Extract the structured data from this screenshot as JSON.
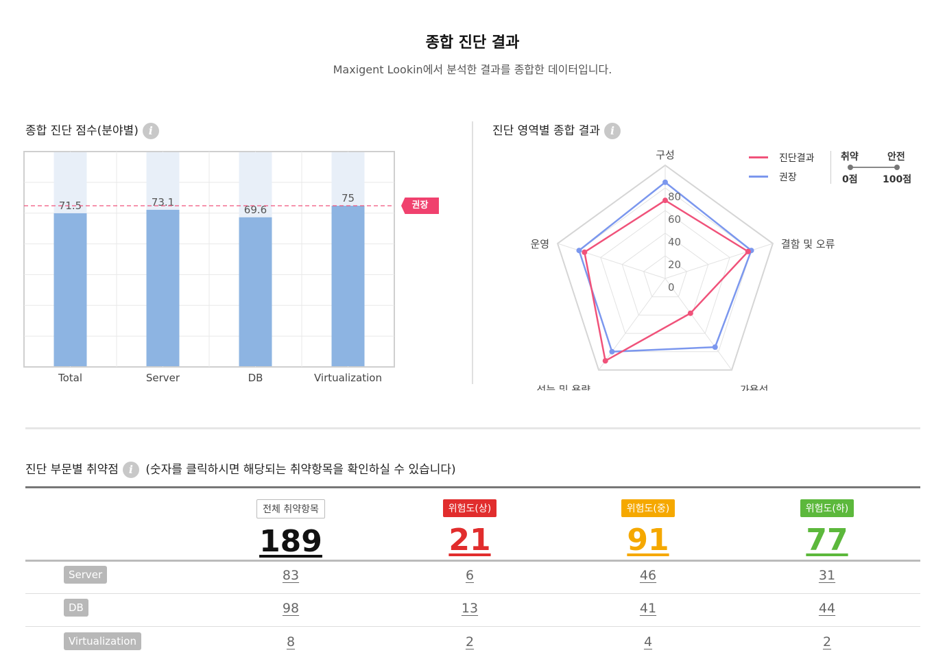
{
  "header": {
    "title": "종합 진단 결과",
    "subtitle": "Maxigent Lookin에서 분석한 결과를 종합한 데이터입니다."
  },
  "bar_section": {
    "title": "종합 진단 점수(분야별)",
    "info_icon": "info-icon",
    "recommend_badge": "권장"
  },
  "radar_section": {
    "title": "진단 영역별 종합 결과",
    "info_icon": "info-icon",
    "legend": {
      "result": "진단결과",
      "recommended": "권장"
    },
    "scale": {
      "weak": "취약",
      "safe": "안전",
      "min_label": "0점",
      "max_label": "100점"
    }
  },
  "vuln_section": {
    "title": "진단 부문별 취약점",
    "note": "(숫자를 클릭하시면 해당되는 취약항목을 확인하실 수 있습니다)",
    "summary": [
      {
        "label": "전체 취약항목",
        "value": "189",
        "color": "#111111"
      },
      {
        "label": "위험도(상)",
        "value": "21",
        "color": "#e12d2d"
      },
      {
        "label": "위험도(중)",
        "value": "91",
        "color": "#f5a800"
      },
      {
        "label": "위험도(하)",
        "value": "77",
        "color": "#5cb83c"
      }
    ],
    "rows": [
      {
        "name": "Server",
        "values": [
          "83",
          "6",
          "46",
          "31"
        ]
      },
      {
        "name": "DB",
        "values": [
          "98",
          "13",
          "41",
          "44"
        ]
      },
      {
        "name": "Virtualization",
        "values": [
          "8",
          "2",
          "4",
          "2"
        ]
      }
    ]
  },
  "chart_data": [
    {
      "type": "bar",
      "title": "종합 진단 점수(분야별)",
      "categories": [
        "Total",
        "Server",
        "DB",
        "Virtualization"
      ],
      "values": [
        71.5,
        73.1,
        69.6,
        75
      ],
      "ylim": [
        0,
        100
      ],
      "reference_line": {
        "label": "권장",
        "value": 75
      },
      "bar_color": "#8db4e2",
      "background_color": "#e8eff8"
    },
    {
      "type": "radar",
      "title": "진단 영역별 종합 결과",
      "axes": [
        "구성",
        "결함 및 오류",
        "가용성",
        "성능 및 용량",
        "운영"
      ],
      "range": [
        0,
        100
      ],
      "ticks": [
        0,
        20,
        40,
        60,
        80
      ],
      "series": [
        {
          "name": "진단결과",
          "color": "#f0527a",
          "values": [
            69,
            77,
            38,
            90,
            75
          ]
        },
        {
          "name": "권장",
          "color": "#7b97ee",
          "values": [
            85,
            80,
            75,
            80,
            80
          ]
        }
      ]
    }
  ]
}
